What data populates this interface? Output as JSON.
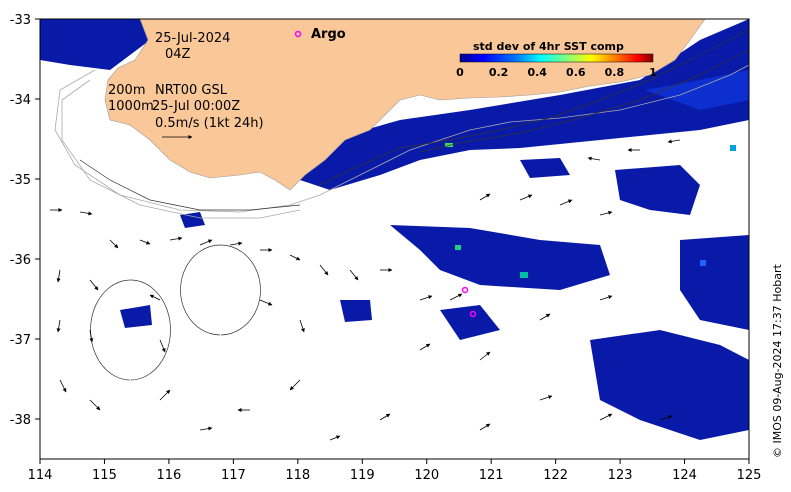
{
  "map": {
    "date": "25-Jul-2024",
    "hour": "04Z",
    "legend_argo": "Argo",
    "depth_200": "200m",
    "depth_1000": "1000m",
    "product": "NRT00 GSL",
    "product_time": "25-Jul 00:00Z",
    "scale_label": "0.5m/s (1kt 24h)",
    "credit": "© IMOS 09-Aug-2024 17:37 Hobart",
    "lon_ticks": [
      "114",
      "115",
      "116",
      "117",
      "118",
      "119",
      "120",
      "121",
      "122",
      "123",
      "124",
      "125"
    ],
    "lat_ticks": [
      "-33",
      "-34",
      "-35",
      "-36",
      "-37",
      "-38"
    ],
    "lon_range": [
      114,
      125
    ],
    "lat_range": [
      -38.5,
      -33
    ],
    "land_color": "#fac898",
    "argo_color": "#ff00ff",
    "argo_floats": [
      {
        "lon": 118.0,
        "lat": -33.2
      },
      {
        "lon": 120.55,
        "lat": -36.4
      },
      {
        "lon": 120.7,
        "lat": -36.7
      }
    ]
  },
  "colorbar": {
    "title": "std dev of 4hr SST comp",
    "ticks": [
      "0",
      "0.2",
      "0.4",
      "0.6",
      "0.8",
      "1"
    ],
    "colormap": [
      "#00008f",
      "#0000ff",
      "#0080ff",
      "#00ffff",
      "#80ff80",
      "#ffff00",
      "#ff8000",
      "#ff0000",
      "#800000"
    ]
  }
}
